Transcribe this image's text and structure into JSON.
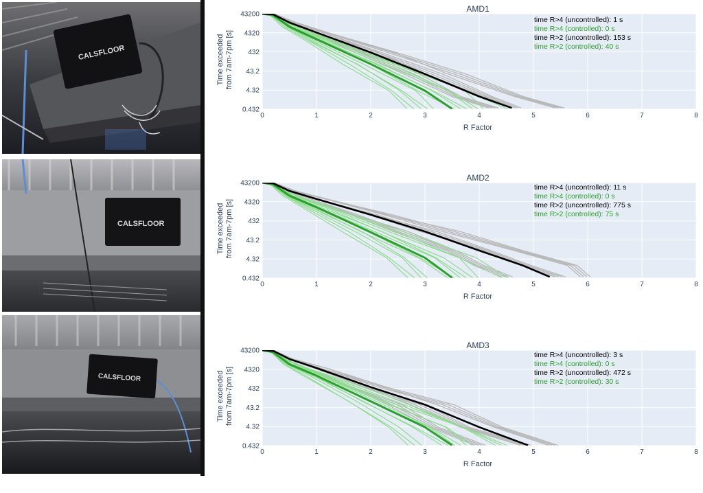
{
  "photos": [
    {
      "name": "photo-sensor-amd1",
      "logo": "CALSFLOOR"
    },
    {
      "name": "photo-sensor-amd2",
      "logo": "CALSFLOOR"
    },
    {
      "name": "photo-sensor-amd3",
      "logo": "CALSFLOOR"
    }
  ],
  "colors": {
    "uncontrolled": "#000000",
    "controlled": "#2ca02c",
    "uncontrolled_runs": "#b8b8b8",
    "controlled_runs": "#8fdc8f",
    "plot_bg": "#e5ecf6",
    "text": "#2a3f5f"
  },
  "chart_data": [
    {
      "type": "line",
      "title": "AMD1",
      "xlabel": "R Factor",
      "ylabel_line1": "Time exceeded",
      "ylabel_line2": "from 7am-7pm [s]",
      "ylog": true,
      "xlim": [
        0,
        8
      ],
      "ylim": [
        0.432,
        43200
      ],
      "xticks": [
        "0",
        "1",
        "2",
        "3",
        "4",
        "5",
        "6",
        "7",
        "8"
      ],
      "yticks": [
        "43200",
        "4320",
        "432",
        "43.2",
        "4.32",
        "0.432"
      ],
      "grid": true,
      "annotations": [
        {
          "text": "time R>4 (uncontrolled): 1 s",
          "color": "#000000"
        },
        {
          "text": "time R>4 (controlled): 0 s",
          "color": "#2ca02c"
        },
        {
          "text": "time R>2 (uncontrolled): 153 s",
          "color": "#000000"
        },
        {
          "text": "time R>2 (controlled): 40 s",
          "color": "#2ca02c"
        }
      ],
      "series": [
        {
          "role": "uncontrolled_mean",
          "x": [
            0,
            0.2,
            0.5,
            1,
            2,
            3,
            4,
            4.6
          ],
          "y": [
            43200,
            40000,
            15000,
            4500,
            400,
            30,
            2,
            0.5
          ]
        },
        {
          "role": "controlled_mean",
          "x": [
            0,
            0.2,
            0.5,
            1,
            2,
            3,
            3.5
          ],
          "y": [
            43200,
            36000,
            9000,
            2000,
            100,
            4,
            0.45
          ]
        }
      ]
    },
    {
      "type": "line",
      "title": "AMD2",
      "xlabel": "R Factor",
      "ylabel_line1": "Time exceeded",
      "ylabel_line2": "from 7am-7pm [s]",
      "ylog": true,
      "xlim": [
        0,
        8
      ],
      "ylim": [
        0.432,
        43200
      ],
      "xticks": [
        "0",
        "1",
        "2",
        "3",
        "4",
        "5",
        "6",
        "7",
        "8"
      ],
      "yticks": [
        "43200",
        "4320",
        "432",
        "43.2",
        "4.32",
        "0.432"
      ],
      "grid": true,
      "annotations": [
        {
          "text": "time R>4 (uncontrolled): 11 s",
          "color": "#000000"
        },
        {
          "text": "time R>4 (controlled): 0 s",
          "color": "#2ca02c"
        },
        {
          "text": "time R>2 (uncontrolled): 775 s",
          "color": "#000000"
        },
        {
          "text": "time R>2 (controlled): 75 s",
          "color": "#2ca02c"
        }
      ],
      "series": [
        {
          "role": "uncontrolled_mean",
          "x": [
            0,
            0.2,
            0.5,
            1,
            2,
            3,
            4,
            4.8,
            5.3
          ],
          "y": [
            43200,
            40000,
            16000,
            6000,
            900,
            120,
            12,
            2,
            0.5
          ]
        },
        {
          "role": "controlled_mean",
          "x": [
            0,
            0.2,
            0.5,
            1,
            2,
            3,
            3.5
          ],
          "y": [
            43200,
            35000,
            9000,
            2200,
            110,
            5,
            0.45
          ]
        }
      ]
    },
    {
      "type": "line",
      "title": "AMD3",
      "xlabel": "R Factor",
      "ylabel_line1": "Time exceeded",
      "ylabel_line2": "from 7am-7pm [s]",
      "ylog": true,
      "xlim": [
        0,
        8
      ],
      "ylim": [
        0.432,
        43200
      ],
      "xticks": [
        "0",
        "1",
        "2",
        "3",
        "4",
        "5",
        "6",
        "7",
        "8"
      ],
      "yticks": [
        "43200",
        "4320",
        "432",
        "43.2",
        "4.32",
        "0.432"
      ],
      "grid": true,
      "annotations": [
        {
          "text": "time R>4 (uncontrolled): 3 s",
          "color": "#000000"
        },
        {
          "text": "time R>4 (controlled): 0 s",
          "color": "#2ca02c"
        },
        {
          "text": "time R>2 (uncontrolled): 472 s",
          "color": "#000000"
        },
        {
          "text": "time R>2 (controlled): 30 s",
          "color": "#2ca02c"
        }
      ],
      "series": [
        {
          "role": "uncontrolled_mean",
          "x": [
            0,
            0.2,
            0.5,
            1,
            2,
            3,
            4,
            4.9
          ],
          "y": [
            43200,
            40000,
            15000,
            5000,
            500,
            60,
            4,
            0.45
          ]
        },
        {
          "role": "controlled_mean",
          "x": [
            0,
            0.2,
            0.5,
            1,
            2,
            3,
            3.5
          ],
          "y": [
            43200,
            34000,
            8000,
            2000,
            90,
            4,
            0.45
          ]
        }
      ]
    }
  ]
}
